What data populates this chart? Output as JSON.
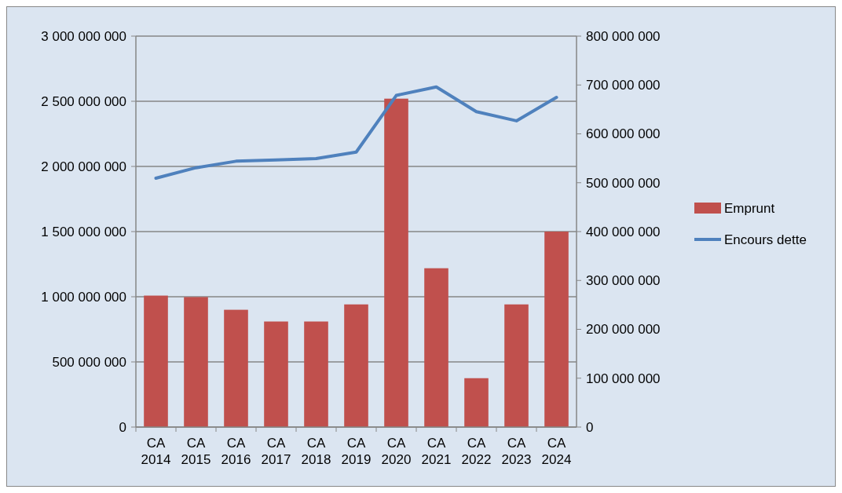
{
  "chart_data": {
    "type": "bar",
    "categories": [
      "CA 2014",
      "CA 2015",
      "CA 2016",
      "CA 2017",
      "CA 2018",
      "CA 2019",
      "CA 2020",
      "CA 2021",
      "CA 2022",
      "CA 2023",
      "CA 2024"
    ],
    "series": [
      {
        "name": "Emprunt",
        "axis": "y2",
        "color": "#c0504d",
        "values": [
          269000000,
          266000000,
          240000000,
          216000000,
          216000000,
          251000000,
          672000000,
          325000000,
          100000000,
          251000000,
          400000000
        ]
      },
      {
        "name": "Encours dette",
        "type": "line",
        "axis": "y",
        "color": "#4f81bd",
        "values": [
          1910000000,
          1990000000,
          2040000000,
          2050000000,
          2060000000,
          2110000000,
          2545000000,
          2610000000,
          2420000000,
          2350000000,
          2530000000
        ]
      }
    ],
    "ylim": [
      0,
      3000000000
    ],
    "yticks": [
      {
        "value": 0,
        "label": "0"
      },
      {
        "value": 500000000,
        "label": "500 000 000"
      },
      {
        "value": 1000000000,
        "label": "1 000 000 000"
      },
      {
        "value": 1500000000,
        "label": "1 500 000 000"
      },
      {
        "value": 2000000000,
        "label": "2 000 000 000"
      },
      {
        "value": 2500000000,
        "label": "2 500 000 000"
      },
      {
        "value": 3000000000,
        "label": "3 000 000 000"
      }
    ],
    "y2lim": [
      0,
      800000000
    ],
    "y2ticks": [
      {
        "value": 0,
        "label": "0"
      },
      {
        "value": 100000000,
        "label": "100 000 000"
      },
      {
        "value": 200000000,
        "label": "200 000 000"
      },
      {
        "value": 300000000,
        "label": "300 000 000"
      },
      {
        "value": 400000000,
        "label": "400 000 000"
      },
      {
        "value": 500000000,
        "label": "500 000 000"
      },
      {
        "value": 600000000,
        "label": "600 000 000"
      },
      {
        "value": 700000000,
        "label": "700 000 000"
      },
      {
        "value": 800000000,
        "label": "800 000 000"
      }
    ],
    "grid": "y",
    "legend": "right",
    "marker": "none",
    "line_style": "solid"
  }
}
